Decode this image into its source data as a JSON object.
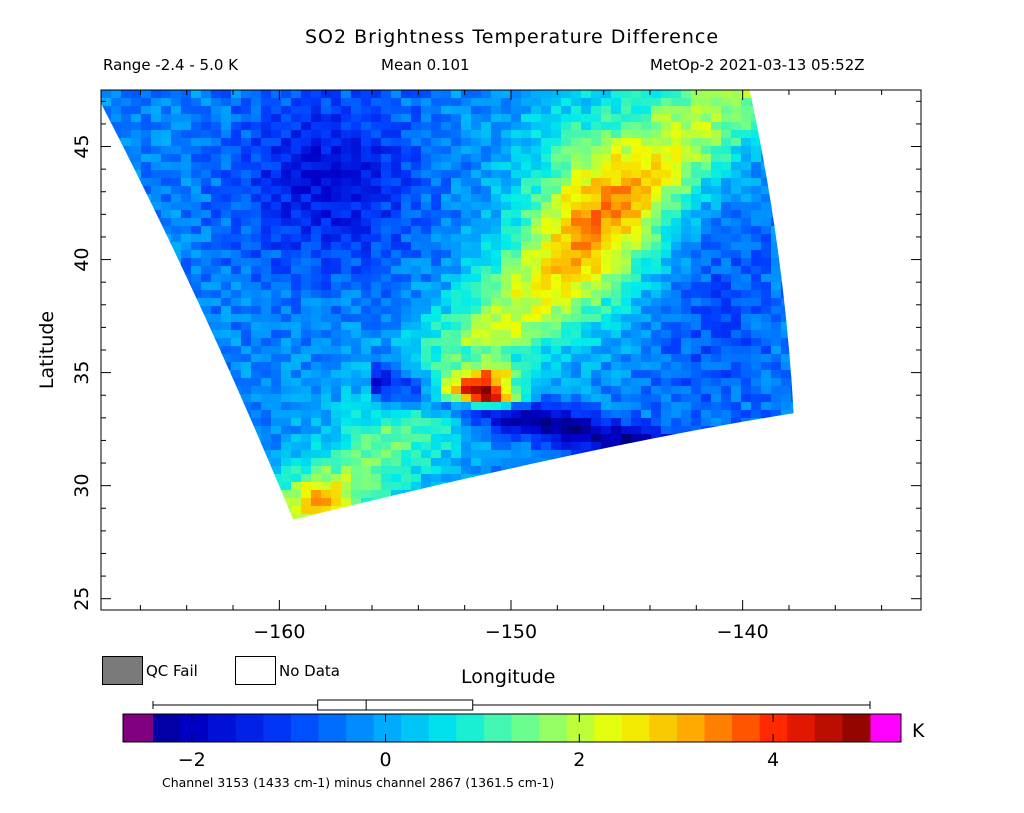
{
  "header": {
    "title": "SO2 Brightness Temperature Difference",
    "range": "Range -2.4 - 5.0 K",
    "mean": "Mean 0.101",
    "satellite_time": "MetOp-2 2021-03-13 05:52Z"
  },
  "legend": {
    "qc_fail_label": "QC Fail",
    "no_data_label": "No Data",
    "qc_fail_color": "#7a7a7a",
    "no_data_color": "#ffffff"
  },
  "colorbar": {
    "unit": "K",
    "ticks": [
      -2,
      0,
      2,
      4
    ],
    "tick_labels": [
      "−2",
      "0",
      "2",
      "4"
    ],
    "min": -2.7,
    "max": 5.0,
    "under_color": "#800080",
    "over_color": "#ff00ff",
    "boxplot": {
      "whisker_low": -2.4,
      "q1": -0.7,
      "median": -0.2,
      "q3": 0.9,
      "whisker_high": 5.0
    }
  },
  "footnote": "Channel 3153 (1433 cm-1) minus channel 2867 (1361.5 cm-1)",
  "chart_data": {
    "type": "heatmap",
    "title": "SO2 Brightness Temperature Difference",
    "xlabel": "Longitude",
    "ylabel": "Latitude",
    "xlim": [
      -167.7,
      -132.3
    ],
    "ylim": [
      24.5,
      47.5
    ],
    "xticks": [
      -160,
      -150,
      -140
    ],
    "xtick_labels": [
      "−160",
      "−150",
      "−140"
    ],
    "yticks": [
      25,
      30,
      35,
      40,
      45
    ],
    "ytick_labels": [
      "25",
      "30",
      "35",
      "40",
      "45"
    ],
    "value_range": [
      -2.4,
      5.0
    ],
    "mean": 0.101,
    "swath_corners": {
      "top_left": [
        -168.0,
        47.5
      ],
      "top_right": [
        -139.7,
        47.5
      ],
      "bottom_right": [
        -137.8,
        33.2
      ],
      "bottom_left": [
        -159.4,
        28.5
      ]
    },
    "features": [
      {
        "lon": -150.8,
        "lat": 33.9,
        "value": 4.8
      },
      {
        "lon": -152.0,
        "lat": 34.2,
        "value": 3.8
      },
      {
        "lon": -151.0,
        "lat": 34.8,
        "value": 3.0
      },
      {
        "lon": -149.2,
        "lat": 32.8,
        "value": -2.2
      },
      {
        "lon": -153.5,
        "lat": 31.5,
        "value": -1.6
      },
      {
        "lon": -158.0,
        "lat": 44.0,
        "value": -1.5
      },
      {
        "lon": -146.5,
        "lat": 42.5,
        "value": 2.0
      },
      {
        "lon": -148.5,
        "lat": 38.5,
        "value": 1.6
      },
      {
        "lon": -158.5,
        "lat": 29.3,
        "value": 2.2
      },
      {
        "lon": -142.0,
        "lat": 38.0,
        "value": -0.6
      }
    ]
  }
}
